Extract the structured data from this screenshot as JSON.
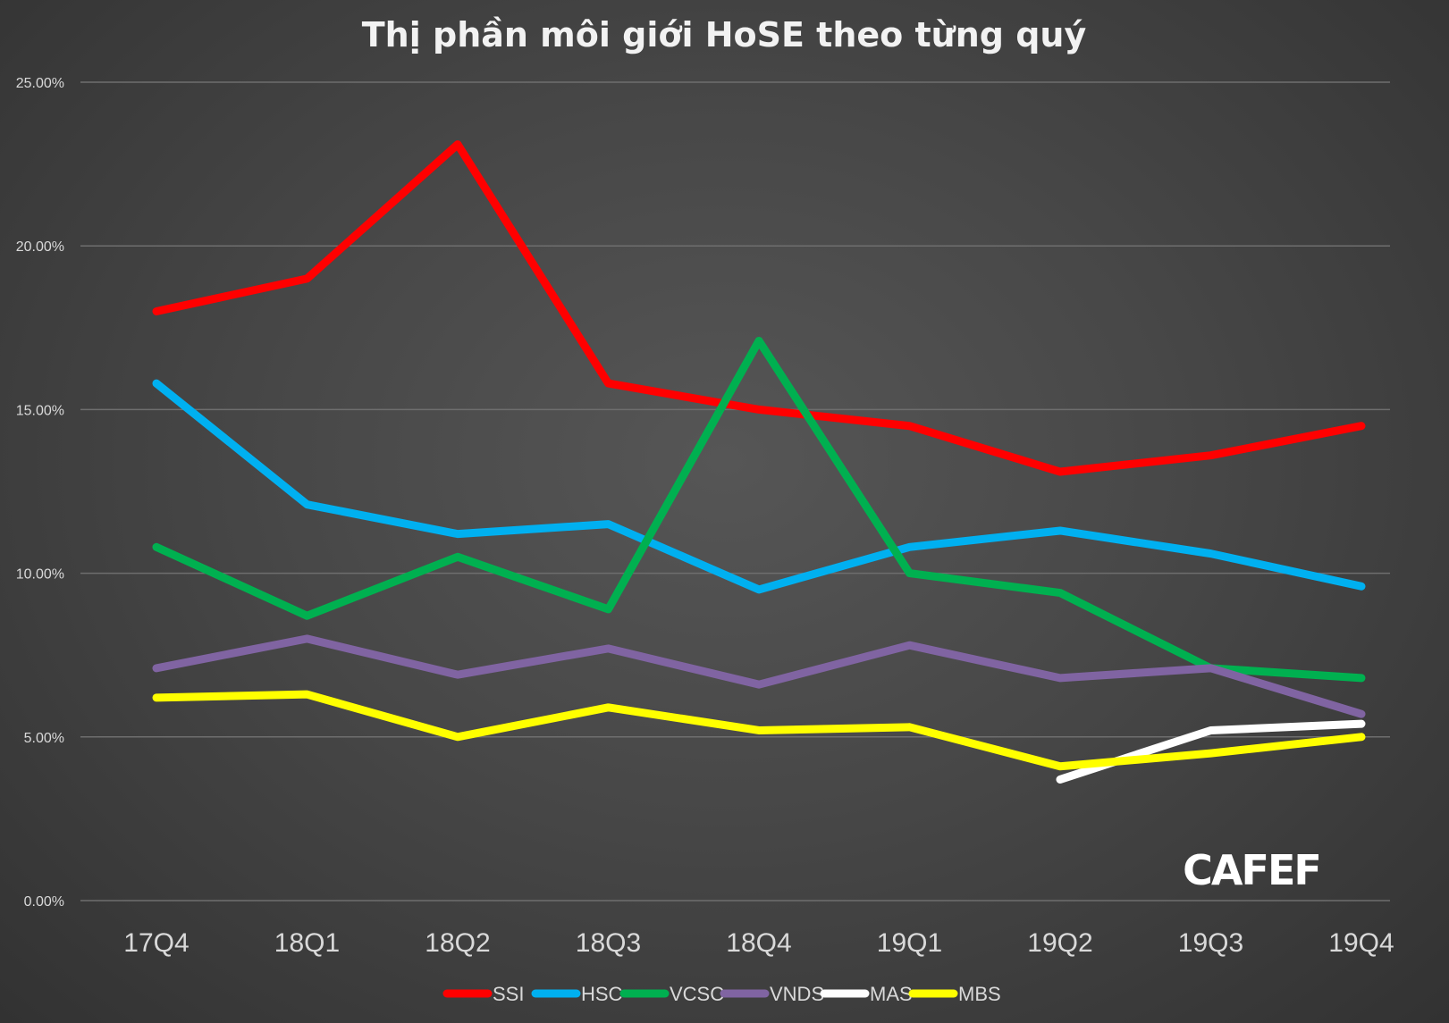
{
  "chart_data": {
    "type": "line",
    "title": "Thị phần môi giới HoSE theo từng quý",
    "xlabel": "",
    "ylabel": "",
    "categories": [
      "17Q4",
      "18Q1",
      "18Q2",
      "18Q3",
      "18Q4",
      "19Q1",
      "19Q2",
      "19Q3",
      "19Q4"
    ],
    "ylim": [
      0,
      25
    ],
    "yticks": [
      "0.00%",
      "5.00%",
      "10.00%",
      "15.00%",
      "20.00%",
      "25.00%"
    ],
    "grid": true,
    "legend_position": "bottom",
    "series": [
      {
        "name": "SSI",
        "color": "#ff0000",
        "values": [
          18.0,
          19.0,
          23.1,
          15.8,
          15.0,
          14.5,
          13.1,
          13.6,
          14.5
        ]
      },
      {
        "name": "HSC",
        "color": "#00b0f0",
        "values": [
          15.8,
          12.1,
          11.2,
          11.5,
          9.5,
          10.8,
          11.3,
          10.6,
          9.6
        ]
      },
      {
        "name": "VCSC",
        "color": "#00b050",
        "values": [
          10.8,
          8.7,
          10.5,
          8.9,
          17.1,
          10.0,
          9.4,
          7.1,
          6.8
        ]
      },
      {
        "name": "VNDS",
        "color": "#8064a2",
        "values": [
          7.1,
          8.0,
          6.9,
          7.7,
          6.6,
          7.8,
          6.8,
          7.1,
          5.7
        ]
      },
      {
        "name": "MAS",
        "color": "#ffffff",
        "values": [
          null,
          null,
          null,
          null,
          null,
          null,
          3.7,
          5.2,
          5.4
        ]
      },
      {
        "name": "MBS",
        "color": "#ffff00",
        "values": [
          6.2,
          6.3,
          5.0,
          5.9,
          5.2,
          5.3,
          4.1,
          4.5,
          5.0
        ]
      }
    ]
  },
  "watermark": {
    "text": "CAFEF"
  }
}
